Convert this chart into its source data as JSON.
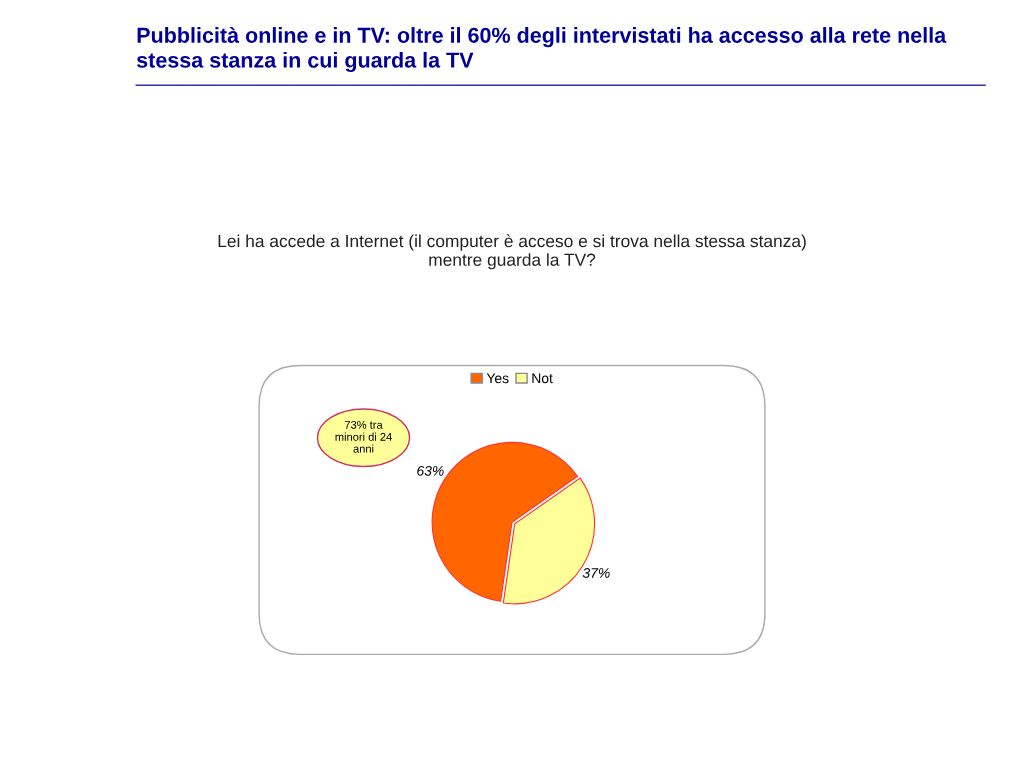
{
  "chart_data": {
    "type": "pie",
    "title": "Pubblicità online e in TV: oltre il 60% degli intervistati ha accesso alla rete nella stessa stanza in cui guarda la TV",
    "subtitle": "Lei ha accede a Internet (il computer è acceso e si trova nella stessa stanza) mentre guarda la TV?",
    "categories": [
      "Yes",
      "Not"
    ],
    "values": [
      63,
      37
    ],
    "colors": [
      "#ff6600",
      "#ffff99"
    ],
    "value_labels": [
      "63%",
      "37%"
    ],
    "annotations": [
      "73% tra minori di 24 anni"
    ],
    "legend": "top"
  }
}
